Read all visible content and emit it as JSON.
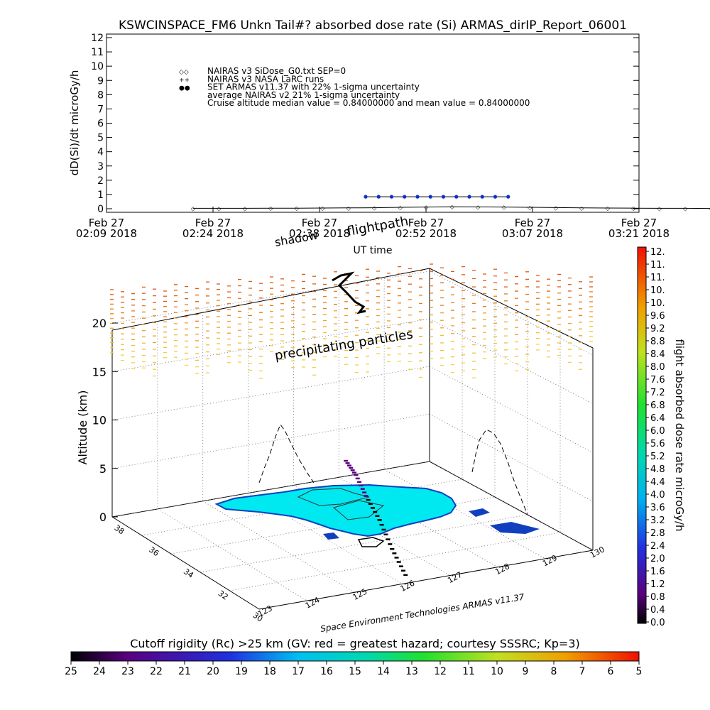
{
  "title": "KSWCINSPACE_FM6 Unkn Tail#? absorbed dose rate (Si) ARMAS_dirIP_Report_06001",
  "chart_data": [
    {
      "type": "line",
      "ylabel": "dD(Si)/dt microGy/h",
      "xlabel": "UT time",
      "ylim": [
        0,
        12
      ],
      "yticks": [
        "0",
        "1",
        "2",
        "3",
        "4",
        "5",
        "6",
        "7",
        "8",
        "9",
        "10",
        "11",
        "12"
      ],
      "xticks": [
        {
          "top": "Feb 27",
          "bottom": "02:09 2018"
        },
        {
          "top": "Feb 27",
          "bottom": "02:24 2018"
        },
        {
          "top": "Feb 27",
          "bottom": "02:38 2018"
        },
        {
          "top": "Feb 27",
          "bottom": "02:52 2018"
        },
        {
          "top": "Feb 27",
          "bottom": "03:07 2018"
        },
        {
          "top": "Feb 27",
          "bottom": "03:21 2018"
        }
      ],
      "legend": [
        {
          "marker": "◇◇",
          "label": "NAIRAS v3 SiDose_G0.txt SEP=0"
        },
        {
          "marker": "++",
          "label": "NAIRAS v3 NASA LaRC runs"
        },
        {
          "marker": "●●",
          "label": "SET ARMAS v11.37 with 22% 1-sigma uncertainty"
        },
        {
          "marker": "",
          "label": "average NAIRAS v2 21% 1-sigma uncertainty"
        },
        {
          "marker": "",
          "label": "Cruise altitude median value = 0.84000000 and mean value = 0.84000000"
        }
      ],
      "series": [
        {
          "name": "NAIRAS v3 SiDose_G0.txt SEP=0",
          "color": "#000000",
          "x_minutes": [
            0,
            6,
            12,
            18,
            24,
            30,
            36,
            42,
            48,
            54,
            60,
            66,
            72,
            78,
            84,
            90,
            96,
            102,
            108,
            114,
            120
          ],
          "values": [
            0.03,
            0.03,
            0.03,
            0.04,
            0.04,
            0.05,
            0.06,
            0.07,
            0.1,
            0.12,
            0.14,
            0.13,
            0.12,
            0.1,
            0.08,
            0.06,
            0.05,
            0.04,
            0.03,
            0.03,
            0.02
          ]
        },
        {
          "name": "SET ARMAS v11.37 with 22% 1-sigma uncertainty",
          "color": "#1030d0",
          "x_minutes": [
            40,
            43,
            46,
            49,
            52,
            55,
            58,
            61,
            64,
            67,
            70,
            73
          ],
          "values": [
            0.84,
            0.84,
            0.84,
            0.84,
            0.84,
            0.84,
            0.84,
            0.84,
            0.84,
            0.84,
            0.84,
            0.84
          ]
        }
      ]
    },
    {
      "type": "scatter",
      "zlabel": "Altitude (km)",
      "zticks": [
        "0",
        "5",
        "10",
        "15",
        "20"
      ],
      "lat_ticks": [
        "30",
        "32",
        "34",
        "36",
        "38"
      ],
      "lon_ticks": [
        "123",
        "124",
        "125",
        "126",
        "127",
        "128",
        "129",
        "130"
      ],
      "annotations": [
        "shadow",
        "flightpath",
        "precipitating particles"
      ],
      "footer": "Space Environment Technologies ARMAS v11.37",
      "flight_track": [
        {
          "lon": 126.3,
          "lat": 30.6,
          "alt_km": 0.0,
          "dose": 0.05
        },
        {
          "lon": 126.4,
          "lat": 31.6,
          "alt_km": 1.5,
          "dose": 0.05
        },
        {
          "lon": 126.6,
          "lat": 32.8,
          "alt_km": 3.0,
          "dose": 0.2
        },
        {
          "lon": 126.7,
          "lat": 33.8,
          "alt_km": 4.3,
          "dose": 0.6
        },
        {
          "lon": 126.8,
          "lat": 34.6,
          "alt_km": 5.5,
          "dose": 0.84
        },
        {
          "lon": 126.9,
          "lat": 35.4,
          "alt_km": 6.0,
          "dose": 0.84
        }
      ]
    },
    {
      "type": "heatmap",
      "title": "flight absorbed dose rate microGy/h",
      "ticks": [
        "12.",
        "11.",
        "11.",
        "10.",
        "10.",
        "9.6",
        "9.2",
        "8.8",
        "8.4",
        "8.0",
        "7.6",
        "7.2",
        "6.8",
        "6.4",
        "6.0",
        "5.6",
        "5.2",
        "4.8",
        "4.4",
        "4.0",
        "3.6",
        "3.2",
        "2.8",
        "2.4",
        "2.0",
        "1.6",
        "1.2",
        "0.8",
        "0.4",
        "0.0"
      ],
      "range": [
        0,
        12
      ]
    },
    {
      "type": "heatmap",
      "title": "Cutoff rigidity (Rc) >25 km (GV: red = greatest hazard; courtesy SSSRC; Kp=3)",
      "ticks": [
        "25",
        "24",
        "23",
        "22",
        "21",
        "20",
        "19",
        "18",
        "17",
        "16",
        "15",
        "14",
        "13",
        "12",
        "11",
        "10",
        "9",
        "8",
        "7",
        "6",
        "5"
      ],
      "range": [
        25,
        5
      ]
    }
  ]
}
